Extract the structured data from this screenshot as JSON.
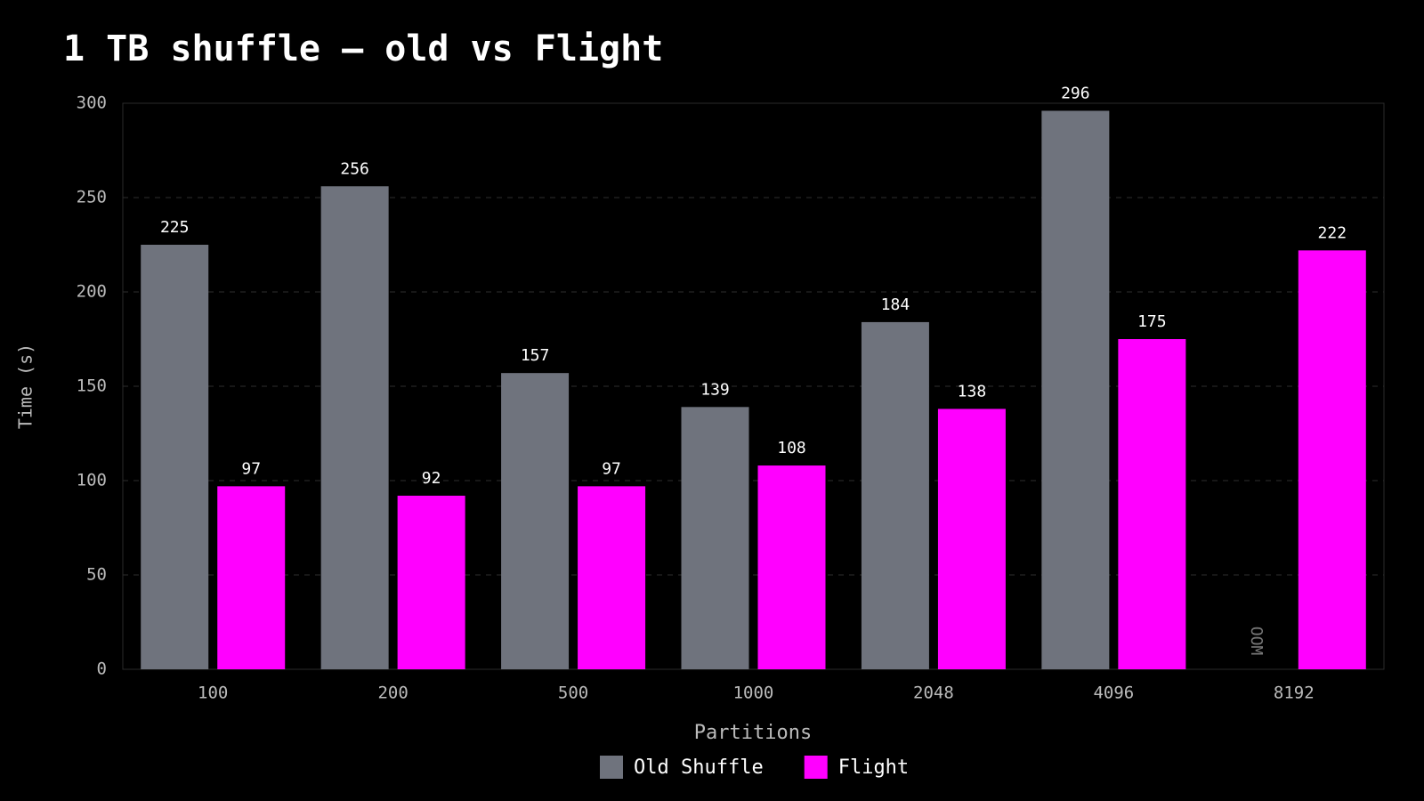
{
  "chart_data": {
    "type": "bar",
    "title": "1 TB shuffle — old vs Flight",
    "x_label": "Partitions",
    "y_label": "Time (s)",
    "categories": [
      "100",
      "200",
      "500",
      "1000",
      "2048",
      "4096",
      "8192"
    ],
    "series": [
      {
        "name": "Old Shuffle",
        "color": "#6f737d",
        "values": [
          225,
          256,
          157,
          139,
          184,
          296,
          null
        ],
        "missing_label": "OOM"
      },
      {
        "name": "Flight",
        "color": "#ff00ff",
        "values": [
          97,
          92,
          97,
          108,
          138,
          175,
          222
        ]
      }
    ],
    "ylim": [
      0,
      300
    ],
    "yticks": [
      0,
      50,
      100,
      150,
      200,
      250,
      300
    ],
    "grid": true
  }
}
